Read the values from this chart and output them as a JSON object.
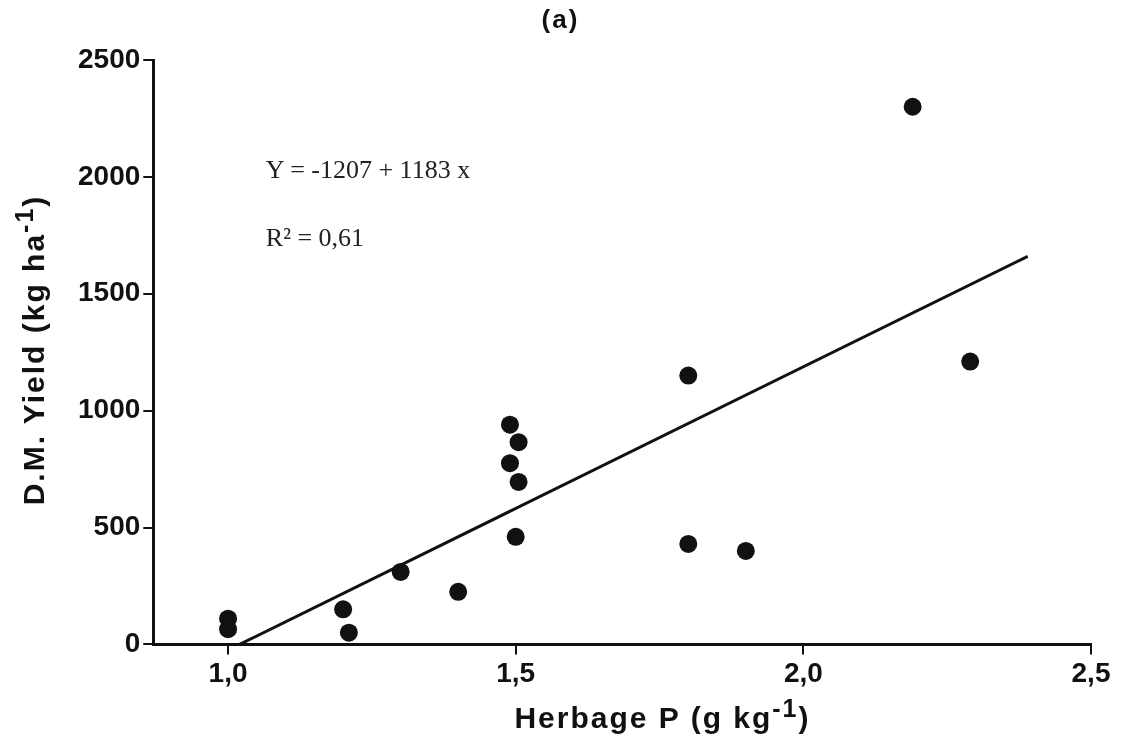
{
  "chart_data": {
    "type": "scatter",
    "title": "(a)",
    "xlabel": "Herbage P (g kg$^{-1}$)",
    "ylabel": "D.M. Yield (kg ha$^{-1}$)",
    "xlim": [
      0.87,
      2.5
    ],
    "xticks": [
      {
        "value": 1,
        "label": "1,0"
      },
      {
        "value": 1.5,
        "label": "1,5"
      },
      {
        "value": 2,
        "label": "2,0"
      },
      {
        "value": 2.5,
        "label": "2,5"
      }
    ],
    "ylim": [
      0,
      2500
    ],
    "yticks": [
      0,
      500,
      1000,
      1500,
      2000,
      2500
    ],
    "grid": false,
    "legend": false,
    "marker": "circle",
    "annotations": [
      "Y = -1207 + 1183 x",
      "R² = 0,61"
    ],
    "series": [
      {
        "color": "#111111",
        "x": [
          1.0,
          1.0,
          1.2,
          1.21,
          1.3,
          1.4,
          1.49,
          1.505,
          1.49,
          1.505,
          1.5,
          1.8,
          1.8,
          1.9,
          2.19,
          2.29
        ],
        "values": [
          110,
          65,
          150,
          50,
          310,
          225,
          940,
          865,
          775,
          695,
          460,
          1150,
          430,
          400,
          2300,
          1210
        ]
      },
      {
        "type": "line",
        "color": "#111111",
        "marker": "none",
        "line_style": "solid",
        "x": [
          1.02,
          2.39
        ],
        "values": [
          0,
          1660
        ]
      }
    ]
  }
}
